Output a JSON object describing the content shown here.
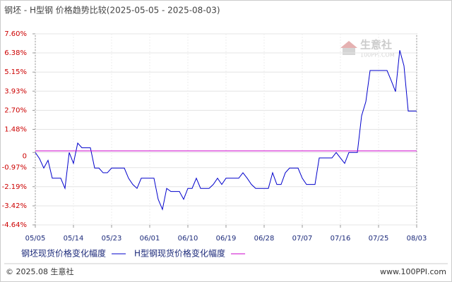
{
  "chart_data": {
    "type": "line",
    "title": "钢坯 - H型钢 价格趋势比较(2025-05-05 - 2025-08-03)",
    "categories": [
      "05/05",
      null,
      null,
      null,
      null,
      null,
      null,
      null,
      null,
      "05/14",
      null,
      null,
      null,
      null,
      null,
      null,
      null,
      null,
      "05/23",
      null,
      null,
      null,
      null,
      null,
      null,
      null,
      null,
      "06/01",
      null,
      null,
      null,
      null,
      null,
      null,
      null,
      null,
      "06/10",
      null,
      null,
      null,
      null,
      null,
      null,
      null,
      null,
      "06/19",
      null,
      null,
      null,
      null,
      null,
      null,
      null,
      null,
      "06/28",
      null,
      null,
      null,
      null,
      null,
      null,
      null,
      null,
      "07/07",
      null,
      null,
      null,
      null,
      null,
      null,
      null,
      null,
      "07/16",
      null,
      null,
      null,
      null,
      null,
      null,
      null,
      null,
      "07/25",
      null,
      null,
      null,
      null,
      null,
      null,
      null,
      null,
      "08/03"
    ],
    "series": [
      {
        "name": "钢坯现货价格变化幅度",
        "color": "#0000cc",
        "values": [
          0,
          -0.4,
          -1.0,
          -0.5,
          -1.65,
          -1.65,
          -1.65,
          -2.3,
          0,
          -0.7,
          0.6,
          0.3,
          0.3,
          0.3,
          -1.0,
          -1.0,
          -1.3,
          -1.3,
          -1.0,
          -1.0,
          -1.0,
          -1.0,
          -1.65,
          -2.05,
          -2.3,
          -1.65,
          -1.65,
          -1.65,
          -1.65,
          -3.0,
          -3.65,
          -2.3,
          -2.5,
          -2.5,
          -2.5,
          -3.0,
          -2.3,
          -2.3,
          -1.65,
          -2.3,
          -2.3,
          -2.3,
          -2.05,
          -1.65,
          -2.05,
          -1.65,
          -1.65,
          -1.65,
          -1.65,
          -1.3,
          -1.65,
          -2.05,
          -2.3,
          -2.3,
          -2.3,
          -2.3,
          -1.3,
          -2.05,
          -2.05,
          -1.3,
          -1.0,
          -1.0,
          -1.0,
          -1.65,
          -2.05,
          -2.05,
          -2.05,
          -0.35,
          -0.35,
          -0.35,
          -0.35,
          0,
          -0.35,
          -0.7,
          0,
          0,
          0,
          2.35,
          3.25,
          5.25,
          5.25,
          5.25,
          5.25,
          5.25,
          4.6,
          3.9,
          6.55,
          5.55,
          2.65,
          2.65,
          2.65
        ]
      },
      {
        "name": "H型钢现货价格变化幅度",
        "color": "#cc00cc",
        "values": [
          0.1,
          0.1,
          0.1,
          0.1,
          0.1,
          0.1,
          0.1,
          0.1,
          0.1,
          0.1,
          0.1,
          0.1,
          0.1,
          0.1,
          0.1,
          0.1,
          0.1,
          0.1,
          0.1,
          0.1,
          0.1,
          0.1,
          0.1,
          0.1,
          0.1,
          0.1,
          0.1,
          0.1,
          0.1,
          0.1,
          0.1,
          0.1,
          0.1,
          0.1,
          0.1,
          0.1,
          0.1,
          0.1,
          0.1,
          0.1,
          0.1,
          0.1,
          0.1,
          0.1,
          0.1,
          0.1,
          0.1,
          0.1,
          0.1,
          0.1,
          0.1,
          0.1,
          0.1,
          0.1,
          0.1,
          0.1,
          0.1,
          0.1,
          0.1,
          0.1,
          0.1,
          0.1,
          0.1,
          0.1,
          0.1,
          0.1,
          0.1,
          0.1,
          0.1,
          0.1,
          0.1,
          0.1,
          0.1,
          0.1,
          0.1,
          0.1,
          0.1,
          0.1,
          0.1,
          0.1,
          0.1,
          0.1,
          0.1,
          0.1,
          0.1,
          0.1,
          0.1,
          0.1,
          0.1,
          0.1,
          0.1
        ]
      }
    ],
    "ylim": [
      -4.64,
      7.6
    ],
    "yticks": [
      {
        "value": 7.6,
        "label": "7.60%"
      },
      {
        "value": 6.38,
        "label": "6.38%"
      },
      {
        "value": 5.15,
        "label": "5.15%"
      },
      {
        "value": 3.93,
        "label": "3.93%"
      },
      {
        "value": 2.7,
        "label": "2.70%"
      },
      {
        "value": 1.48,
        "label": "1.48%"
      },
      0,
      {
        "value": -0.97,
        "label": "-0.97%"
      },
      {
        "value": -2.19,
        "label": "-2.19%"
      },
      {
        "value": -3.42,
        "label": "-3.42%"
      },
      {
        "value": -4.64,
        "label": "-4.64%"
      }
    ],
    "grid": true
  },
  "watermark": {
    "name": "生意社",
    "site": "100PPI.COM"
  },
  "footer": {
    "copyright": "© 2025.08 生意社",
    "site": "www.100PPI.com"
  }
}
